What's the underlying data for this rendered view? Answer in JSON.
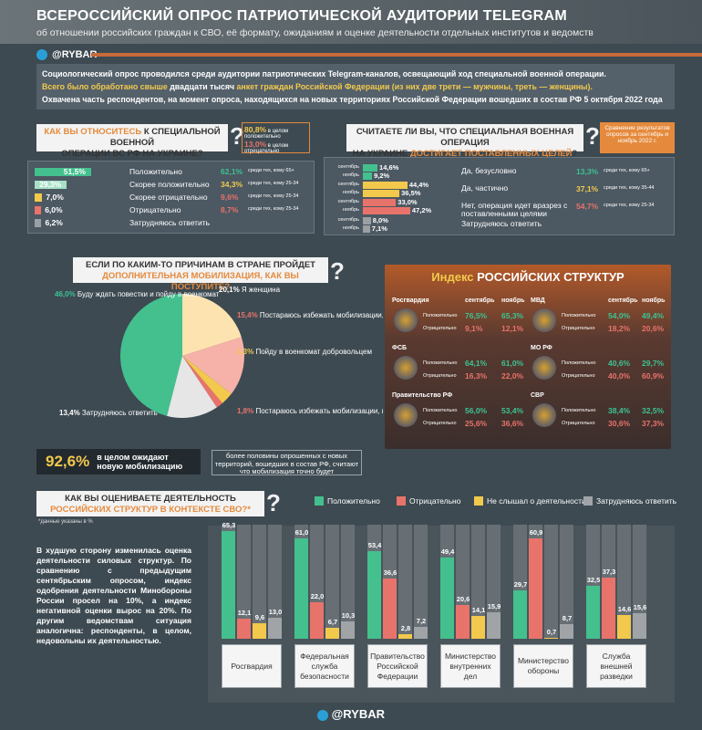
{
  "header": {
    "title": "ВСЕРОССИЙСКИЙ ОПРОС ПАТРИОТИЧЕСКОЙ АУДИТОРИИ TELEGRAM",
    "subtitle": "об отношении российских граждан к СВО, её формату, ожиданиям и оценке деятельности отдельных институтов и ведомств",
    "brand": "@RYBAR"
  },
  "intro": {
    "line1": "Социологический опрос проводился среди аудитории патриотических Telegram-каналов, освещающий ход специальной военной операции.",
    "line2a": "Всего было обработано свыше ",
    "line2b": "двадцати тысяч",
    "line2c": " анкет граждан Российской Федерации (из них две трети — мужчины, треть — женщины).",
    "line3": "Охвачена часть респондентов, на момент опроса, находящихся на новых территориях Российской Федерации вошедших в состав РФ 5 октября 2022 года"
  },
  "q1": {
    "title_a": "КАК ВЫ ОТНОСИТЕСЬ",
    "title_b": " К СПЕЦИАЛЬНОЙ ВОЕННОЙ",
    "title_c": "ОПЕРАЦИИ ВС РФ НА УКРАИНЕ?",
    "pos_total": "80,8%",
    "pos_total_label": "в целом положительно",
    "neg_total": "13,0%",
    "neg_total_label": "в целом отрицательно"
  },
  "q2": {
    "title_a": "СЧИТАЕТЕ ЛИ ВЫ, ЧТО СПЕЦИАЛЬНАЯ ВОЕННАЯ ОПЕРАЦИЯ",
    "title_b": "НА УКРАИНЕ ",
    "title_c": "ДОСТИГАЕТ ПОСТАВЛЕННЫХ ЦЕЛЕЙ",
    "title_d": "?",
    "note": "Сравнение результатов опросов за сентябрь и ноябрь 2022 г."
  },
  "q3": {
    "title_a": "ЕСЛИ ПО КАКИМ-ТО ПРИЧИНАМ В СТРАНЕ ПРОЙДЕТ",
    "title_b": "ДОПОЛНИТЕЛЬНАЯ МОБИЛИЗАЦИЯ, КАК ВЫ ПОСТУПИТЕ?",
    "big_pct": "92,6%",
    "big_label": "в целом ожидают новую мобилизацию",
    "note": "более половины опрошенных с новых территорий, вошедших в состав РФ, считают что мобилизация точно будет"
  },
  "idx": {
    "title_a": "Индекс ",
    "title_b": "РОССИЙСКИХ СТРУКТУР",
    "col_sep": "сентябрь",
    "col_nov": "ноябрь",
    "pos_label": "Положительно",
    "neg_label": "Отрицательно",
    "orgs": [
      {
        "name": "Росгвардия",
        "pos": [
          "76,5%",
          "65,3%"
        ],
        "neg": [
          "9,1%",
          "12,1%"
        ]
      },
      {
        "name": "ФСБ",
        "pos": [
          "64,1%",
          "61,0%"
        ],
        "neg": [
          "16,3%",
          "22,0%"
        ]
      },
      {
        "name": "Правительство РФ",
        "pos": [
          "56,0%",
          "53,4%"
        ],
        "neg": [
          "25,6%",
          "36,6%"
        ]
      },
      {
        "name": "МВД",
        "pos": [
          "54,0%",
          "49,4%"
        ],
        "neg": [
          "18,2%",
          "20,6%"
        ]
      },
      {
        "name": "МО РФ",
        "pos": [
          "40,6%",
          "29,7%"
        ],
        "neg": [
          "40,0%",
          "60,9%"
        ]
      },
      {
        "name": "СВР",
        "pos": [
          "38,4%",
          "32,5%"
        ],
        "neg": [
          "30,6%",
          "37,3%"
        ]
      }
    ]
  },
  "q4": {
    "title_a": "КАК ВЫ ОЦЕНИВАЕТЕ ДЕЯТЕЛЬНОСТЬ",
    "title_b": "РОССИЙСКИХ СТРУКТУР В КОНТЕКСТЕ СВО?*",
    "footnote": "*данные указаны в %",
    "commentary": "В худшую сторону изменилась оценка деятельности силовых структур. По сравнению с предыдущим сентябрьским опросом, индекс одобрения деятельности Минобороны России просел на 10%, а индекс негативной оценки вырос на 20%. По другим ведомствам ситуация аналогична: респонденты, в целом, недовольны их деятельностью."
  },
  "footer": {
    "brand": "@RYBAR"
  },
  "chart_data": [
    {
      "type": "bar",
      "title": "КАК ВЫ ОТНОСИТЕСЬ К СПЕЦИАЛЬНОЙ ВОЕННОЙ ОПЕРАЦИИ ВС РФ НА УКРАИНЕ?",
      "categories": [
        "Положительно",
        "Скорее положительно",
        "Скорее отрицательно",
        "Отрицательно",
        "Затрудняюсь ответить"
      ],
      "values": [
        51.5,
        29.3,
        7.0,
        6.0,
        6.2
      ],
      "value_labels": [
        "51,5%",
        "29,3%",
        "7,0%",
        "6,0%",
        "6,2%"
      ],
      "colors": [
        "#43c08d",
        "#a6e0c6",
        "#f2c94c",
        "#e8736b",
        "#9aa0a4"
      ],
      "annotations": [
        {
          "value": "62,1%",
          "text": "среди тех, кому 65+"
        },
        {
          "value": "34,3%",
          "text": "среди тех, кому 25-34"
        },
        {
          "value": "9,6%",
          "text": "среди тех, кому 25-34"
        },
        {
          "value": "8,7%",
          "text": "среди тех, кому 25-34"
        }
      ]
    },
    {
      "type": "bar",
      "title": "СЧИТАЕТЕ ЛИ ВЫ, ЧТО СПЕЦИАЛЬНАЯ ВОЕННАЯ ОПЕРАЦИЯ НА УКРАИНЕ ДОСТИГАЕТ ПОСТАВЛЕННЫХ ЦЕЛЕЙ?",
      "categories": [
        "Да, безусловно",
        "Да, частично",
        "Нет, операция идет вразрез с поставленными целями",
        "Затрудняюсь ответить"
      ],
      "series": [
        {
          "name": "сентябрь",
          "values": [
            14.6,
            44.4,
            33.0,
            8.0
          ],
          "labels": [
            "14,6%",
            "44,4%",
            "33,0%",
            "8,0%"
          ]
        },
        {
          "name": "ноябрь",
          "values": [
            9.2,
            36.5,
            47.2,
            7.1
          ],
          "labels": [
            "9,2%",
            "36,5%",
            "47,2%",
            "7,1%"
          ]
        }
      ],
      "colors": [
        "#43c08d",
        "#f2c94c",
        "#e8736b",
        "#9aa0a4"
      ],
      "annotations": [
        {
          "value": "13,3%",
          "text": "среди тех, кому 65+"
        },
        {
          "value": "37,1%",
          "text": "среди тех, кому 35-44"
        },
        {
          "value": "54,7%",
          "text": "среди тех, кому 25-34"
        }
      ]
    },
    {
      "type": "pie",
      "title": "ЕСЛИ ПО КАКИМ-ТО ПРИЧИНАМ В СТРАНЕ ПРОЙДЕТ ДОПОЛНИТЕЛЬНАЯ МОБИЛИЗАЦИЯ, КАК ВЫ ПОСТУПИТЕ?",
      "slices": [
        {
          "label": "Буду ждать повестки и пойду в военкомат",
          "value": 46.0,
          "value_label": "46,0%",
          "color": "#43c08d"
        },
        {
          "label": "Я женщина",
          "value": 20.1,
          "value_label": "20,1%",
          "color": "#fde3b0"
        },
        {
          "label": "Постараюсь избежать мобилизации, оставаясь в РФ",
          "value": 15.4,
          "value_label": "15,4%",
          "color": "#f6b2a8"
        },
        {
          "label": "Пойду в военкомат добровольцем",
          "value": 3.3,
          "value_label": "3,3%",
          "color": "#f2c94c"
        },
        {
          "label": "Постараюсь избежать мобилизации, покинув страну",
          "value": 1.8,
          "value_label": "1,8%",
          "color": "#e8736b"
        },
        {
          "label": "Затрудняюсь ответить",
          "value": 13.4,
          "value_label": "13,4%",
          "color": "#e6e6e6"
        }
      ]
    },
    {
      "type": "bar",
      "title": "КАК ВЫ ОЦЕНИВАЕТЕ ДЕЯТЕЛЬНОСТЬ РОССИЙСКИХ СТРУКТУР В КОНТЕКСТЕ СВО?*",
      "categories": [
        "Росгвардия",
        "Федеральная служба безопасности",
        "Правительство Российской Федерации",
        "Министерство внутренних дел",
        "Министерство обороны",
        "Служба внешней разведки"
      ],
      "category_lines": [
        [
          "Росгвардия"
        ],
        [
          "Федеральная",
          "служба",
          "безопасности"
        ],
        [
          "Правительство",
          "Российской",
          "Федерации"
        ],
        [
          "Министерство",
          "внутренних",
          "дел"
        ],
        [
          "Министерство",
          "обороны"
        ],
        [
          "Служба",
          "внешней",
          "разведки"
        ]
      ],
      "series": [
        {
          "name": "Положительно",
          "color": "#43c08d",
          "values": [
            65.3,
            61.0,
            53.4,
            49.4,
            29.7,
            32.5
          ],
          "labels": [
            "65,3",
            "61,0",
            "53,4",
            "49,4",
            "29,7",
            "32,5"
          ]
        },
        {
          "name": "Отрицательно",
          "color": "#e8736b",
          "values": [
            12.1,
            22.0,
            36.6,
            20.6,
            60.9,
            37.3
          ],
          "labels": [
            "12,1",
            "22,0",
            "36,6",
            "20,6",
            "60,9",
            "37,3"
          ]
        },
        {
          "name": "Не слышал о деятельности",
          "color": "#f2c94c",
          "values": [
            9.6,
            6.7,
            2.8,
            14.1,
            0.7,
            14.6
          ],
          "labels": [
            "9,6",
            "6,7",
            "2,8",
            "14,1",
            "0,7",
            "14,6"
          ]
        },
        {
          "name": "Затрудняюсь ответить",
          "color": "#a0a4a7",
          "values": [
            13.0,
            10.3,
            7.2,
            15.9,
            8.7,
            15.6
          ],
          "labels": [
            "13,0",
            "10,3",
            "7,2",
            "15,9",
            "8,7",
            "15,6"
          ]
        }
      ],
      "ylim": [
        0,
        100
      ]
    }
  ]
}
